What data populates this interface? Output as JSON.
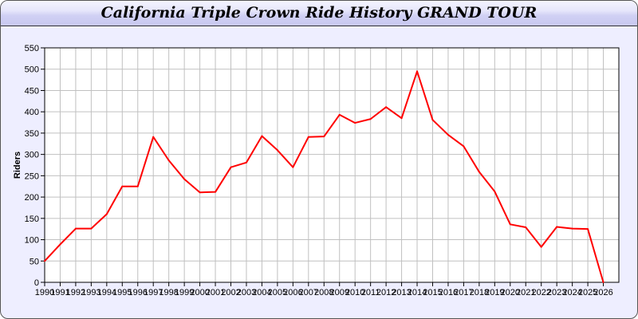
{
  "chart_data": {
    "type": "line",
    "title": "California Triple Crown Ride History GRAND TOUR",
    "xlabel": "",
    "ylabel": "Riders",
    "x": [
      1990,
      1991,
      1992,
      1993,
      1994,
      1995,
      1996,
      1997,
      1998,
      1999,
      2000,
      2001,
      2002,
      2003,
      2004,
      2005,
      2006,
      2007,
      2008,
      2009,
      2010,
      2011,
      2012,
      2013,
      2014,
      2015,
      2016,
      2017,
      2018,
      2019,
      2020,
      2021,
      2022,
      2023,
      2024,
      2025,
      2026
    ],
    "series": [
      {
        "values": [
          50,
          89,
          126,
          126,
          160,
          225,
          225,
          341,
          286,
          242,
          211,
          212,
          270,
          281,
          343,
          310,
          270,
          341,
          342,
          393,
          374,
          383,
          411,
          385,
          495,
          381,
          346,
          319,
          259,
          213,
          136,
          129,
          83,
          130,
          126,
          125,
          0
        ],
        "color": "#ff0000"
      }
    ],
    "xlim": [
      1990,
      2027
    ],
    "ylim": [
      0,
      550
    ],
    "yticks": [
      0,
      50,
      100,
      150,
      200,
      250,
      300,
      350,
      400,
      450,
      500,
      550
    ],
    "grid": true,
    "legend": "none"
  },
  "colors": {
    "background": "#eeeeff",
    "grid": "#c0c0c0",
    "line": "#ff0000"
  }
}
